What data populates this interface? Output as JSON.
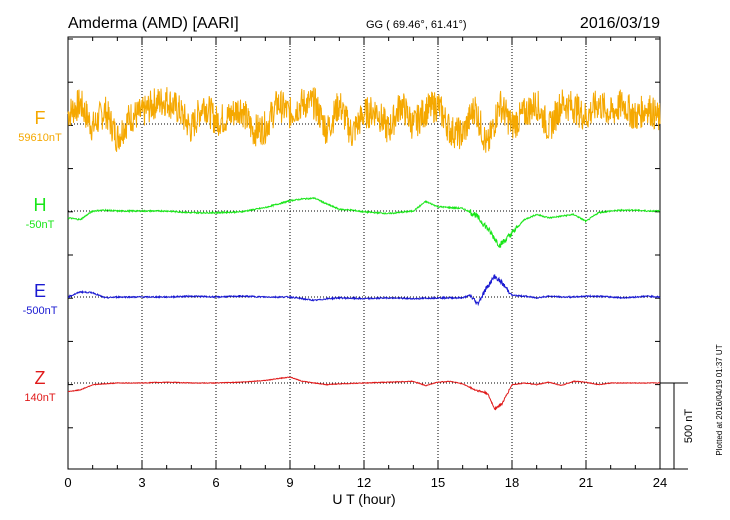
{
  "header": {
    "station": "Amderma (AMD)  [AARI]",
    "coords": "GG ( 69.46°,  61.41°)",
    "date": "2016/03/19"
  },
  "footer": {
    "plotted": "Plotted at 2016/04/19 01:37  UT"
  },
  "colors": {
    "F": "#f5a800",
    "H": "#19e619",
    "E": "#1a1ad2",
    "Z": "#e01a1a"
  },
  "chart_data": {
    "type": "line",
    "xlabel": "U T (hour)",
    "xlim": [
      0,
      24
    ],
    "x_ticks": [
      "0",
      "3",
      "6",
      "9",
      "12",
      "15",
      "18",
      "21",
      "24"
    ],
    "scale_label": "500 nT",
    "series": [
      {
        "name": "F",
        "baseline_label": "59610nT",
        "note_y_units": "nT relative to baseline",
        "x": [
          0,
          0.5,
          1,
          1.5,
          2,
          2.5,
          3,
          3.5,
          4,
          4.5,
          5,
          5.5,
          6,
          6.5,
          7,
          7.5,
          8,
          8.5,
          9,
          9.5,
          10,
          10.5,
          11,
          11.5,
          12,
          12.5,
          13,
          13.5,
          14,
          14.5,
          15,
          15.5,
          16,
          16.5,
          17,
          17.5,
          18,
          18.5,
          19,
          19.5,
          20,
          20.5,
          21,
          21.5,
          22,
          22.5,
          23,
          23.5,
          24
        ],
        "y": [
          60,
          120,
          -20,
          80,
          -80,
          40,
          60,
          120,
          140,
          80,
          -30,
          120,
          20,
          40,
          100,
          -40,
          -20,
          120,
          60,
          120,
          120,
          -40,
          120,
          -60,
          60,
          80,
          -40,
          120,
          -10,
          80,
          110,
          -40,
          -60,
          100,
          -140,
          120,
          -10,
          60,
          120,
          -30,
          120,
          100,
          40,
          120,
          60,
          120,
          40,
          100,
          20
        ]
      },
      {
        "name": "H",
        "baseline_label": "-50nT",
        "x": [
          0,
          0.5,
          1,
          1.5,
          2,
          3,
          4,
          5,
          6,
          7,
          8,
          8.5,
          9,
          9.5,
          10,
          10.5,
          11,
          11.5,
          12,
          13,
          14,
          14.5,
          15,
          15.5,
          16,
          16.5,
          17,
          17.5,
          18,
          18.5,
          19,
          19.5,
          20,
          20.5,
          21,
          21.5,
          22,
          22.5,
          23,
          23.5,
          24
        ],
        "y": [
          -40,
          -50,
          0,
          5,
          0,
          0,
          0,
          -10,
          -10,
          -5,
          20,
          40,
          60,
          70,
          75,
          40,
          10,
          5,
          -5,
          -15,
          0,
          55,
          25,
          20,
          15,
          -20,
          -100,
          -200,
          -130,
          -50,
          -20,
          -40,
          -30,
          -20,
          -60,
          -10,
          0,
          5,
          5,
          0,
          0
        ]
      },
      {
        "name": "E",
        "baseline_label": "-500nT",
        "x": [
          0,
          0.5,
          1,
          1.5,
          2,
          3,
          4,
          5,
          6,
          7,
          8,
          9,
          9.5,
          10,
          10.5,
          11,
          12,
          13,
          14,
          15,
          16,
          16.3,
          16.6,
          17,
          17.3,
          17.6,
          18,
          18.5,
          19,
          19.5,
          20,
          20.5,
          21,
          21.5,
          22,
          22.5,
          23,
          23.5,
          24
        ],
        "y": [
          0,
          30,
          25,
          -5,
          0,
          0,
          0,
          5,
          0,
          5,
          0,
          0,
          -10,
          -20,
          -10,
          -5,
          -10,
          -5,
          -10,
          -5,
          -5,
          10,
          -40,
          60,
          120,
          80,
          10,
          5,
          -5,
          5,
          0,
          0,
          5,
          5,
          0,
          -5,
          0,
          5,
          0
        ]
      },
      {
        "name": "Z",
        "baseline_label": "140nT",
        "x": [
          0,
          0.5,
          1,
          1.5,
          2,
          3,
          4,
          5,
          6,
          7,
          8,
          8.5,
          9,
          9.5,
          10,
          10.5,
          11,
          12,
          13,
          14,
          14.5,
          15,
          15.5,
          16,
          16.5,
          17,
          17.3,
          17.6,
          18,
          18.5,
          19,
          19.5,
          20,
          20.5,
          21,
          21.5,
          22,
          22.5,
          23,
          23.5,
          24
        ],
        "y": [
          -50,
          -40,
          -10,
          -5,
          0,
          0,
          5,
          0,
          0,
          5,
          15,
          25,
          35,
          10,
          0,
          -10,
          -5,
          0,
          5,
          10,
          -15,
          5,
          10,
          -5,
          -40,
          -60,
          -150,
          -120,
          -10,
          0,
          -10,
          5,
          -15,
          10,
          5,
          -10,
          0,
          0,
          0,
          0,
          0
        ]
      }
    ]
  }
}
